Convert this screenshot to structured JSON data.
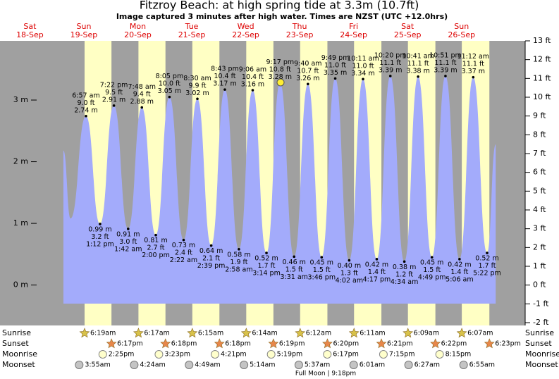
{
  "chart_data": {
    "type": "area",
    "title": "Fitzroy Beach: at high  spring tide at 3.3m (10.7ft)",
    "subtitle": "Image captured 3 minutes after high water. Times are NZST (UTC +12.0hrs)",
    "days": [
      {
        "name": "Sat",
        "date": "18-Sep"
      },
      {
        "name": "Sun",
        "date": "19-Sep"
      },
      {
        "name": "Mon",
        "date": "20-Sep"
      },
      {
        "name": "Tue",
        "date": "21-Sep"
      },
      {
        "name": "Wed",
        "date": "22-Sep"
      },
      {
        "name": "Thu",
        "date": "23-Sep"
      },
      {
        "name": "Fri",
        "date": "24-Sep"
      },
      {
        "name": "Sat",
        "date": "25-Sep"
      },
      {
        "name": "Sun",
        "date": "26-Sep"
      }
    ],
    "xlim": [
      -7.3,
      226.3
    ],
    "x": [
      20.9,
      24.1,
      30.95,
      37.2,
      43.37,
      49.7,
      55.8,
      62.0,
      68.08,
      74.37,
      80.5,
      86.65,
      92.72,
      98.97,
      105.1,
      111.23,
      117.28,
      123.52,
      129.67,
      135.77,
      141.82,
      148.03,
      154.18,
      160.28,
      166.33,
      172.57,
      178.68,
      184.82,
      190.85,
      197.1,
      203.2,
      209.37,
      213.2
    ],
    "series": [
      {
        "color": "#a3abfb",
        "values": [
          2.18,
          1.08,
          2.74,
          0.99,
          2.91,
          0.91,
          2.88,
          0.81,
          3.05,
          0.73,
          3.02,
          0.64,
          3.17,
          0.58,
          3.16,
          0.52,
          3.28,
          0.46,
          3.26,
          0.45,
          3.35,
          0.4,
          3.34,
          0.42,
          3.39,
          0.38,
          3.38,
          0.45,
          3.39,
          0.42,
          3.37,
          0.52,
          2.28
        ],
        "value_labels": [
          null,
          null,
          "2.74 m",
          "0.99 m",
          "2.91 m",
          "0.91 m",
          "2.88 m",
          "0.81 m",
          "3.05 m",
          "0.73 m",
          "3.02 m",
          "0.64 m",
          "3.17 m",
          "0.58 m",
          "3.16 m",
          "0.52 m",
          "3.28 m",
          "0.46 m",
          "3.26 m",
          "0.45 m",
          "3.35 m",
          "0.40 m",
          "3.34 m",
          "0.42 m",
          "3.39 m",
          "0.38 m",
          "3.38 m",
          "0.45 m",
          "3.39 m",
          "0.42 m",
          "3.37 m",
          "0.52 m",
          null
        ],
        "ft_labels": [
          null,
          null,
          "9.0 ft",
          "3.2 ft",
          "9.5 ft",
          "3.0 ft",
          "9.4 ft",
          "2.7 ft",
          "10.0 ft",
          "2.4 ft",
          "9.9 ft",
          "2.1 ft",
          "10.4 ft",
          "1.9 ft",
          "10.4 ft",
          "1.7 ft",
          "10.8 ft",
          "1.5 ft",
          "10.7 ft",
          "1.5 ft",
          "11.0 ft",
          "1.3 ft",
          "11.0 ft",
          "1.4 ft",
          "11.1 ft",
          "1.2 ft",
          "11.1 ft",
          "1.5 ft",
          "11.1 ft",
          "1.4 ft",
          "11.1 ft",
          "1.7 ft",
          null
        ],
        "times": [
          null,
          null,
          "6:57 am",
          "1:12 pm",
          "7:22 pm",
          "1:42 am",
          "7:48 am",
          "2:00 pm",
          "8:05 pm",
          "2:22 am",
          "8:30 am",
          "2:39 pm",
          "8:43 pm",
          "2:58 am",
          "9:06 am",
          "3:14 pm",
          "9:17 pm",
          "3:31 am",
          "9:40 am",
          "3:46 pm",
          "9:49 pm",
          "4:02 am",
          "10:11 am",
          "4:17 pm",
          "10:20 pm",
          "4:34 am",
          "10:41 am",
          "4:49 pm",
          "10:51 pm",
          "5:06 am",
          "11:12 am",
          "5:22 pm",
          null
        ]
      }
    ],
    "ylim": [
      -0.61,
      3.96
    ],
    "yticks": [
      {
        "value": 0,
        "label": "0 m"
      },
      {
        "value": 1,
        "label": "1 m"
      },
      {
        "value": 2,
        "label": "2 m"
      },
      {
        "value": 3,
        "label": "3 m"
      }
    ],
    "y2lim": [
      -2,
      13
    ],
    "y2ticks": [
      {
        "value": -2,
        "label": "-2 ft"
      },
      {
        "value": -1,
        "label": "-1 ft"
      },
      {
        "value": 0,
        "label": "0 ft"
      },
      {
        "value": 1,
        "label": "1 ft"
      },
      {
        "value": 2,
        "label": "2 ft"
      },
      {
        "value": 3,
        "label": "3 ft"
      },
      {
        "value": 4,
        "label": "4 ft"
      },
      {
        "value": 5,
        "label": "5 ft"
      },
      {
        "value": 6,
        "label": "6 ft"
      },
      {
        "value": 7,
        "label": "7 ft"
      },
      {
        "value": 8,
        "label": "8 ft"
      },
      {
        "value": 9,
        "label": "9 ft"
      },
      {
        "value": 10,
        "label": "10 ft"
      },
      {
        "value": 11,
        "label": "11 ft"
      },
      {
        "value": 12,
        "label": "12 ft"
      },
      {
        "value": 13,
        "label": "13 ft"
      }
    ],
    "almanac": [
      {
        "label": "Sunrise",
        "times": [
          "6:19am",
          "6:17am",
          "6:15am",
          "6:14am",
          "6:12am",
          "6:11am",
          "6:09am",
          "6:07am"
        ]
      },
      {
        "label": "Sunset",
        "times": [
          "6:17pm",
          "6:18pm",
          "6:18pm",
          "6:19pm",
          "6:20pm",
          "6:21pm",
          "6:22pm",
          "6:23pm"
        ]
      },
      {
        "label": "Moonrise",
        "times": [
          "2:25pm",
          "3:23pm",
          "4:21pm",
          "5:19pm",
          "6:17pm",
          "7:15pm",
          "8:15pm"
        ]
      },
      {
        "label": "Moonset",
        "times": [
          "3:55am",
          "4:24am",
          "4:49am",
          "5:14am",
          "5:37am",
          "6:01am",
          "6:27am",
          "6:55am"
        ]
      }
    ],
    "moon_phase": "Full Moon | 9:18pm"
  }
}
